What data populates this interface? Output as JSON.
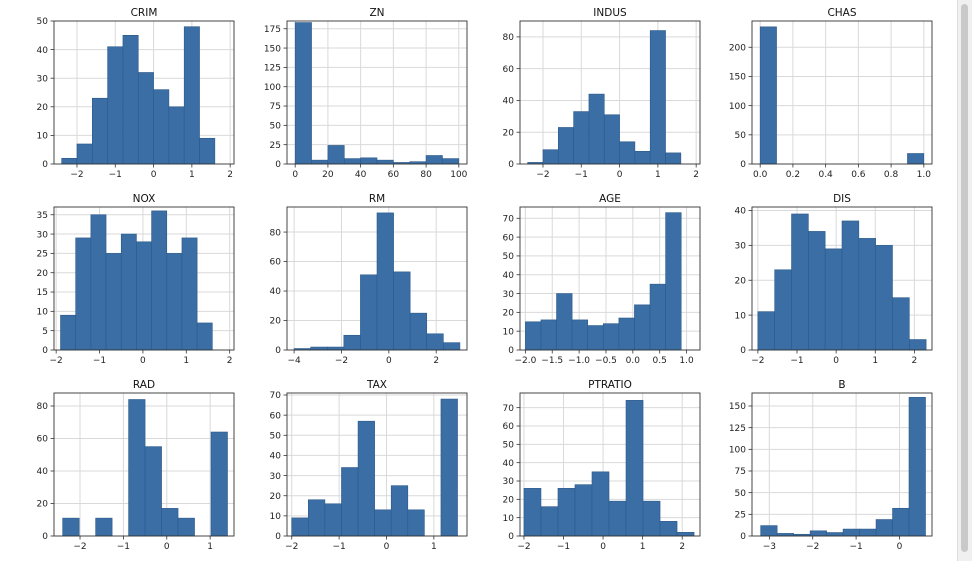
{
  "colors": {
    "bar_fill": "#3a6ea5",
    "bar_edge": "#2d5a8a",
    "grid": "#d9d9d9",
    "axis": "#333333"
  },
  "chart_data": [
    {
      "type": "bar",
      "title": "CRIM",
      "xlim": [
        -2.6,
        2.1
      ],
      "ylim": [
        0,
        50
      ],
      "xticks": [
        -2,
        -1,
        0,
        1,
        2
      ],
      "xtick_labels": [
        "−2",
        "−1",
        "0",
        "1",
        "2"
      ],
      "yticks": [
        0,
        10,
        20,
        30,
        40,
        50
      ],
      "ytick_labels": [
        "0",
        "10",
        "20",
        "30",
        "40",
        "50"
      ],
      "bin_edges": [
        -2.4,
        -2.0,
        -1.6,
        -1.2,
        -0.8,
        -0.4,
        0.0,
        0.4,
        0.8,
        1.2,
        1.6,
        2.0
      ],
      "values": [
        2,
        7,
        23,
        41,
        45,
        32,
        26,
        20,
        48,
        9,
        0
      ]
    },
    {
      "type": "bar",
      "title": "ZN",
      "xlim": [
        -5,
        105
      ],
      "ylim": [
        0,
        185
      ],
      "xticks": [
        0,
        20,
        40,
        60,
        80,
        100
      ],
      "xtick_labels": [
        "0",
        "20",
        "40",
        "60",
        "80",
        "100"
      ],
      "yticks": [
        0,
        25,
        50,
        75,
        100,
        125,
        150,
        175
      ],
      "ytick_labels": [
        "0",
        "25",
        "50",
        "75",
        "100",
        "125",
        "150",
        "175"
      ],
      "bin_edges": [
        0,
        10,
        20,
        30,
        40,
        50,
        60,
        70,
        80,
        90,
        100
      ],
      "values": [
        183,
        5,
        24,
        7,
        8,
        5,
        2,
        3,
        11,
        7
      ]
    },
    {
      "type": "bar",
      "title": "INDUS",
      "xlim": [
        -2.6,
        2.1
      ],
      "ylim": [
        0,
        90
      ],
      "xticks": [
        -2,
        -1,
        0,
        1,
        2
      ],
      "xtick_labels": [
        "−2",
        "−1",
        "0",
        "1",
        "2"
      ],
      "yticks": [
        0,
        20,
        40,
        60,
        80
      ],
      "ytick_labels": [
        "0",
        "20",
        "40",
        "60",
        "80"
      ],
      "bin_edges": [
        -2.4,
        -2.0,
        -1.6,
        -1.2,
        -0.8,
        -0.4,
        0.0,
        0.4,
        0.8,
        1.2,
        1.6,
        1.9
      ],
      "values": [
        1,
        9,
        23,
        33,
        44,
        31,
        14,
        8,
        84,
        7,
        0
      ]
    },
    {
      "type": "bar",
      "title": "CHAS",
      "xlim": [
        -0.05,
        1.05
      ],
      "ylim": [
        0,
        245
      ],
      "xticks": [
        0.0,
        0.2,
        0.4,
        0.6,
        0.8,
        1.0
      ],
      "xtick_labels": [
        "0.0",
        "0.2",
        "0.4",
        "0.6",
        "0.8",
        "1.0"
      ],
      "yticks": [
        0,
        50,
        100,
        150,
        200
      ],
      "ytick_labels": [
        "0",
        "50",
        "100",
        "150",
        "200"
      ],
      "bin_edges": [
        0.0,
        0.1,
        0.2,
        0.3,
        0.4,
        0.5,
        0.6,
        0.7,
        0.8,
        0.9,
        1.0
      ],
      "values": [
        235,
        0,
        0,
        0,
        0,
        0,
        0,
        0,
        0,
        18
      ]
    },
    {
      "type": "bar",
      "title": "NOX",
      "xlim": [
        -2.05,
        2.1
      ],
      "ylim": [
        0,
        37
      ],
      "xticks": [
        -2,
        -1,
        0,
        1,
        2
      ],
      "xtick_labels": [
        "−2",
        "−1",
        "0",
        "1",
        "2"
      ],
      "yticks": [
        0,
        5,
        10,
        15,
        20,
        25,
        30,
        35
      ],
      "ytick_labels": [
        "0",
        "5",
        "10",
        "15",
        "20",
        "25",
        "30",
        "35"
      ],
      "bin_edges": [
        -1.9,
        -1.55,
        -1.2,
        -0.85,
        -0.5,
        -0.15,
        0.2,
        0.55,
        0.9,
        1.25,
        1.6,
        1.95
      ],
      "values": [
        9,
        29,
        35,
        25,
        30,
        28,
        36,
        25,
        29,
        7,
        0
      ]
    },
    {
      "type": "bar",
      "title": "RM",
      "xlim": [
        -4.3,
        3.3
      ],
      "ylim": [
        0,
        97
      ],
      "xticks": [
        -4,
        -2,
        0,
        2
      ],
      "xtick_labels": [
        "−4",
        "−2",
        "0",
        "2"
      ],
      "yticks": [
        0,
        20,
        40,
        60,
        80
      ],
      "ytick_labels": [
        "0",
        "20",
        "40",
        "60",
        "80"
      ],
      "bin_edges": [
        -4.0,
        -3.3,
        -2.6,
        -1.9,
        -1.2,
        -0.5,
        0.2,
        0.9,
        1.6,
        2.3,
        3.0
      ],
      "values": [
        1,
        2,
        2,
        10,
        51,
        93,
        53,
        25,
        11,
        5
      ]
    },
    {
      "type": "bar",
      "title": "AGE",
      "xlim": [
        -2.1,
        1.25
      ],
      "ylim": [
        0,
        76
      ],
      "xticks": [
        -2.0,
        -1.5,
        -1.0,
        -0.5,
        0.0,
        0.5,
        1.0
      ],
      "xtick_labels": [
        "−2.0",
        "−1.5",
        "−1.0",
        "−0.5",
        "0.0",
        "0.5",
        "1.0"
      ],
      "yticks": [
        0,
        10,
        20,
        30,
        40,
        50,
        60,
        70
      ],
      "ytick_labels": [
        "0",
        "10",
        "20",
        "30",
        "40",
        "50",
        "60",
        "70"
      ],
      "bin_edges": [
        -2.0,
        -1.71,
        -1.42,
        -1.13,
        -0.84,
        -0.55,
        -0.26,
        0.03,
        0.32,
        0.61,
        0.9,
        1.15
      ],
      "values": [
        15,
        16,
        30,
        16,
        13,
        14,
        17,
        24,
        35,
        73,
        0
      ]
    },
    {
      "type": "bar",
      "title": "DIS",
      "xlim": [
        -2.15,
        2.45
      ],
      "ylim": [
        0,
        41
      ],
      "xticks": [
        -2,
        -1,
        0,
        1,
        2
      ],
      "xtick_labels": [
        "−2",
        "−1",
        "0",
        "1",
        "2"
      ],
      "yticks": [
        0,
        10,
        20,
        30,
        40
      ],
      "ytick_labels": [
        "0",
        "10",
        "20",
        "30",
        "40"
      ],
      "bin_edges": [
        -2.0,
        -1.57,
        -1.14,
        -0.71,
        -0.28,
        0.15,
        0.58,
        1.01,
        1.44,
        1.87,
        2.3
      ],
      "values": [
        11,
        23,
        39,
        34,
        29,
        37,
        32,
        30,
        15,
        3
      ]
    },
    {
      "type": "bar",
      "title": "RAD",
      "xlim": [
        -2.6,
        1.55
      ],
      "ylim": [
        0,
        88
      ],
      "xticks": [
        -2,
        -1,
        0,
        1
      ],
      "xtick_labels": [
        "−2",
        "−1",
        "0",
        "1"
      ],
      "yticks": [
        0,
        20,
        40,
        60,
        80
      ],
      "ytick_labels": [
        "0",
        "20",
        "40",
        "60",
        "80"
      ],
      "bin_edges": [
        -2.4,
        -2.02,
        -1.64,
        -1.26,
        -0.88,
        -0.5,
        -0.12,
        0.26,
        0.64,
        1.02,
        1.4
      ],
      "values": [
        11,
        0,
        11,
        0,
        84,
        55,
        17,
        11,
        0,
        64
      ]
    },
    {
      "type": "bar",
      "title": "TAX",
      "xlim": [
        -2.1,
        1.7
      ],
      "ylim": [
        0,
        71
      ],
      "xticks": [
        -2,
        -1,
        0,
        1
      ],
      "xtick_labels": [
        "−2",
        "−1",
        "0",
        "1"
      ],
      "yticks": [
        0,
        10,
        20,
        30,
        40,
        50,
        60,
        70
      ],
      "ytick_labels": [
        "0",
        "10",
        "20",
        "30",
        "40",
        "50",
        "60",
        "70"
      ],
      "bin_edges": [
        -2.0,
        -1.65,
        -1.3,
        -0.95,
        -0.6,
        -0.25,
        0.1,
        0.45,
        0.8,
        1.15,
        1.5
      ],
      "values": [
        9,
        18,
        16,
        34,
        57,
        13,
        25,
        13,
        0,
        68
      ]
    },
    {
      "type": "bar",
      "title": "PTRATIO",
      "xlim": [
        -2.1,
        2.45
      ],
      "ylim": [
        0,
        78
      ],
      "xticks": [
        -2,
        -1,
        0,
        1,
        2
      ],
      "xtick_labels": [
        "−2",
        "−1",
        "0",
        "1",
        "2"
      ],
      "yticks": [
        0,
        10,
        20,
        30,
        40,
        50,
        60,
        70
      ],
      "ytick_labels": [
        "0",
        "10",
        "20",
        "30",
        "40",
        "50",
        "60",
        "70"
      ],
      "bin_edges": [
        -2.0,
        -1.57,
        -1.14,
        -0.71,
        -0.28,
        0.15,
        0.58,
        1.01,
        1.44,
        1.87,
        2.3
      ],
      "values": [
        26,
        16,
        26,
        28,
        35,
        19,
        74,
        19,
        8,
        2
      ]
    },
    {
      "type": "bar",
      "title": "B",
      "xlim": [
        -3.4,
        0.75
      ],
      "ylim": [
        0,
        165
      ],
      "xticks": [
        -3,
        -2,
        -1,
        0
      ],
      "xtick_labels": [
        "−3",
        "−2",
        "−1",
        "0"
      ],
      "yticks": [
        0,
        25,
        50,
        75,
        100,
        125,
        150
      ],
      "ytick_labels": [
        "0",
        "25",
        "50",
        "75",
        "100",
        "125",
        "150"
      ],
      "bin_edges": [
        -3.2,
        -2.82,
        -2.44,
        -2.06,
        -1.68,
        -1.3,
        -0.92,
        -0.54,
        -0.16,
        0.22,
        0.6
      ],
      "values": [
        12,
        3,
        2,
        6,
        4,
        8,
        8,
        19,
        32,
        160
      ]
    }
  ]
}
